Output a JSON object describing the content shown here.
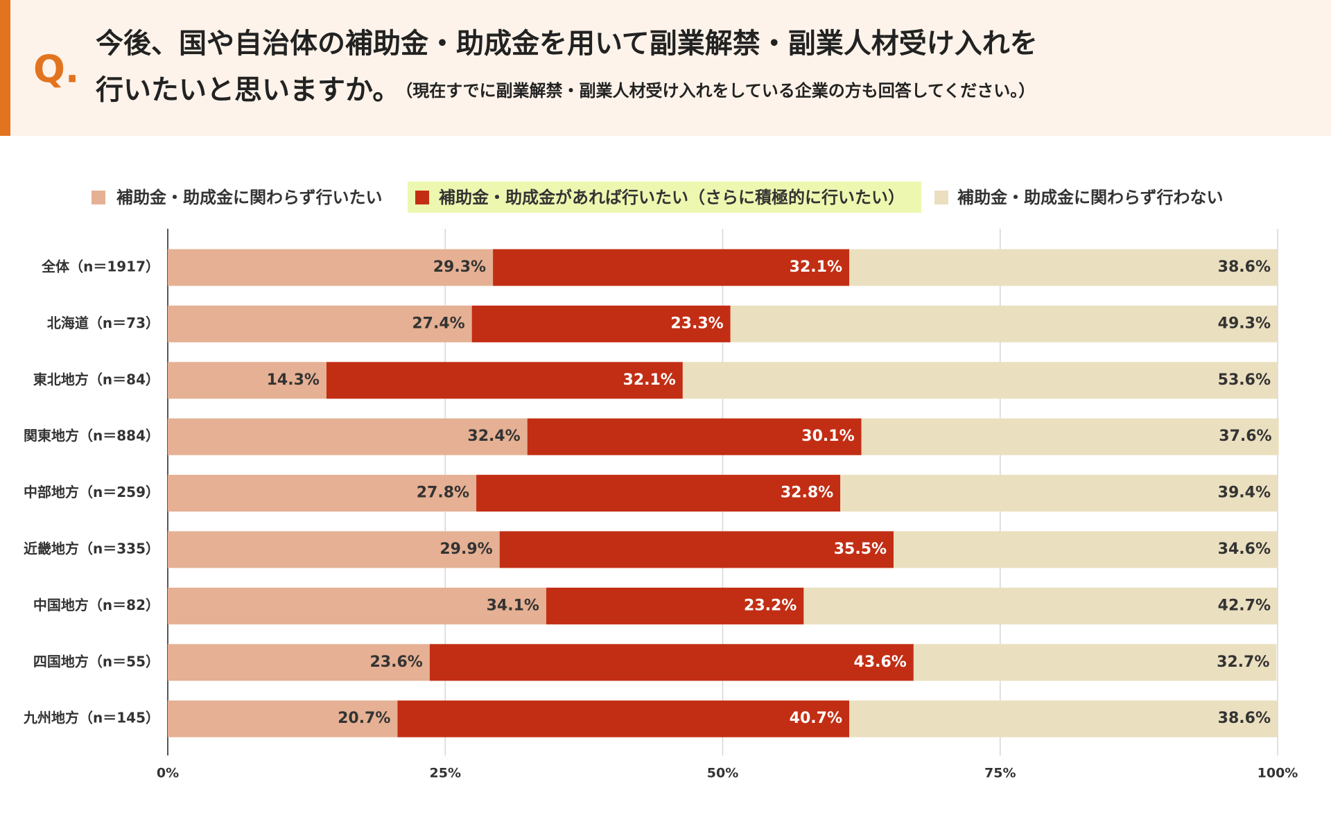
{
  "header": {
    "marker": "Q."
  },
  "chart_data": {
    "type": "stacked-bar-horizontal",
    "title": [
      "今後、国や自治体の補助金・助成金を用いて副業解禁・副業人材受け入れを",
      "行いたいと思いますか。"
    ],
    "subtitle": "（現在すでに副業解禁・副業人材受け入れをしている企業の方も回答してください。）",
    "categories": [
      "全体（n＝1917）",
      "北海道（n＝73）",
      "東北地方（n＝84）",
      "関東地方（n＝884）",
      "中部地方（n＝259）",
      "近畿地方（n＝335）",
      "中国地方（n＝82）",
      "四国地方（n＝55）",
      "九州地方（n＝145）"
    ],
    "series": [
      {
        "name": "補助金・助成金に関わらず行いたい",
        "color": "#e5b093",
        "label_color": "#333333",
        "values": [
          29.3,
          27.4,
          14.3,
          32.4,
          27.8,
          29.9,
          34.1,
          23.6,
          20.7
        ],
        "value_labels": [
          "29.3%",
          "27.4%",
          "14.3%",
          "32.4%",
          "27.8%",
          "29.9%",
          "34.1%",
          "23.6%",
          "20.7%"
        ]
      },
      {
        "name": "補助金・助成金があれば行いたい（さらに積極的に行いたい）",
        "color": "#c22e14",
        "label_color": "#ffffff",
        "values": [
          32.1,
          23.3,
          32.1,
          30.1,
          32.8,
          35.5,
          23.2,
          43.6,
          40.7
        ],
        "value_labels": [
          "32.1%",
          "23.3%",
          "32.1%",
          "30.1%",
          "32.8%",
          "35.5%",
          "23.2%",
          "43.6%",
          "40.7%"
        ]
      },
      {
        "name": "補助金・助成金に関わらず行わない",
        "color": "#eadfbf",
        "label_color": "#333333",
        "values": [
          38.6,
          49.3,
          53.6,
          37.6,
          39.4,
          34.6,
          42.7,
          32.7,
          38.6
        ],
        "value_labels": [
          "38.6%",
          "49.3%",
          "53.6%",
          "37.6%",
          "39.4%",
          "34.6%",
          "42.7%",
          "32.7%",
          "38.6%"
        ]
      }
    ],
    "xlim": [
      0,
      100
    ],
    "xticks": [
      {
        "value": 0,
        "label": "0%"
      },
      {
        "value": 25,
        "label": "25%"
      },
      {
        "value": 50,
        "label": "50%"
      },
      {
        "value": 75,
        "label": "75%"
      },
      {
        "value": 100,
        "label": "100%"
      }
    ],
    "grid": true
  }
}
